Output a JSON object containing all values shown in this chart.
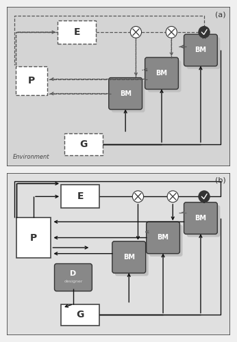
{
  "fig_bg": "#f0f0f0",
  "panel_a_bg": "#d4d4d4",
  "panel_b_bg": "#e0e0e0",
  "env_label": "Environment",
  "label_a": "(a)",
  "label_b": "(b)"
}
